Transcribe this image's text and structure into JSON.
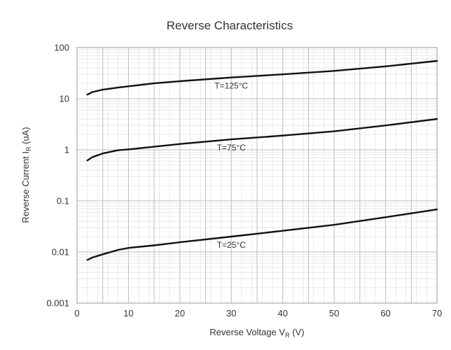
{
  "chart_data": {
    "type": "line",
    "title": "Reverse Characteristics",
    "xlabel": {
      "main": "Reverse Voltage V",
      "sub": "R",
      "unit": " (V)"
    },
    "ylabel": {
      "main": "Reverse Current I",
      "sub": "R",
      "unit": " (uA)"
    },
    "xlim": [
      0,
      70
    ],
    "ylim": [
      0.001,
      100
    ],
    "y_scale": "log",
    "grid": true,
    "x_ticks": [
      0,
      10,
      20,
      30,
      40,
      50,
      60,
      70
    ],
    "x_tick_labels": [
      "0",
      "10",
      "20",
      "30",
      "40",
      "50",
      "60",
      "70"
    ],
    "y_ticks": [
      0.001,
      0.01,
      0.1,
      1,
      10,
      100
    ],
    "y_tick_labels": [
      "0.001",
      "0.01",
      "0.1",
      "1",
      "10",
      "100"
    ],
    "series": [
      {
        "name": "T=125°C",
        "x": [
          2,
          3,
          5,
          8,
          10,
          15,
          20,
          30,
          40,
          50,
          60,
          70
        ],
        "y": [
          12,
          13.5,
          15,
          16.5,
          17.5,
          20,
          22,
          26,
          30,
          35,
          43,
          55
        ]
      },
      {
        "name": "T=75°C",
        "x": [
          2,
          3,
          5,
          8,
          10,
          15,
          20,
          30,
          40,
          50,
          60,
          70
        ],
        "y": [
          0.62,
          0.72,
          0.85,
          0.98,
          1.02,
          1.15,
          1.3,
          1.6,
          1.9,
          2.3,
          3.0,
          4.0
        ]
      },
      {
        "name": "T=25°C",
        "x": [
          2,
          3,
          5,
          8,
          10,
          15,
          20,
          30,
          40,
          50,
          60,
          70
        ],
        "y": [
          0.007,
          0.0078,
          0.009,
          0.011,
          0.012,
          0.0135,
          0.0155,
          0.02,
          0.026,
          0.034,
          0.048,
          0.068
        ]
      }
    ],
    "annotations": [
      {
        "text": "T=125°C",
        "series": 0
      },
      {
        "text": "T=75°C",
        "series": 1
      },
      {
        "text": "T=25°C",
        "series": 2
      }
    ],
    "colors": {
      "line": "#111111",
      "major_grid": "#bdbdbd",
      "minor_grid": "#e4e4e4",
      "text": "#333333"
    }
  }
}
